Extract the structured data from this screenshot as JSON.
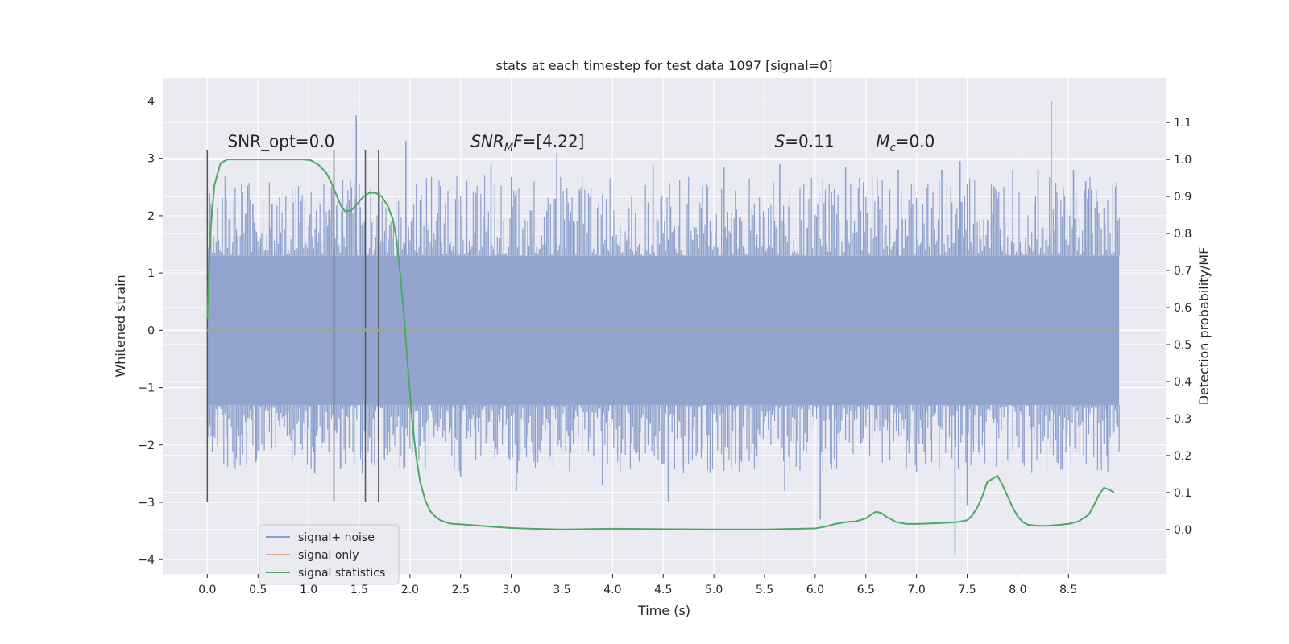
{
  "chart_data": {
    "type": "line",
    "title": "stats at each timestep for test data 1097 [signal=0]",
    "xlabel": "Time (s)",
    "ylabel": "Whitened strain",
    "y2label": "Detection probability/MF",
    "xlim": [
      -0.44,
      9.46
    ],
    "ylim": [
      -4.25,
      4.4
    ],
    "y2lim": [
      -0.12,
      1.22
    ],
    "grid": true,
    "x_ticks": [
      0.0,
      0.5,
      1.0,
      1.5,
      2.0,
      2.5,
      3.0,
      3.5,
      4.0,
      4.5,
      5.0,
      5.5,
      6.0,
      6.5,
      7.0,
      7.5,
      8.0,
      8.5
    ],
    "x_tick_labels": [
      "0.0",
      "0.5",
      "1.0",
      "1.5",
      "2.0",
      "2.5",
      "3.0",
      "3.5",
      "4.0",
      "4.5",
      "5.0",
      "5.5",
      "6.0",
      "6.5",
      "7.0",
      "7.5",
      "8.0",
      "8.5"
    ],
    "y_ticks": [
      4,
      3,
      2,
      1,
      0,
      -1,
      -2,
      -3,
      -4
    ],
    "y_tick_labels": [
      "4",
      "3",
      "2",
      "1",
      "0",
      "−1",
      "−2",
      "−3",
      "−4"
    ],
    "y2_ticks": [
      1.1,
      1.0,
      0.9,
      0.8,
      0.7,
      0.6,
      0.5,
      0.4,
      0.3,
      0.2,
      0.1,
      0.0
    ],
    "y2_tick_labels": [
      "1.1",
      "1.0",
      "0.9",
      "0.8",
      "0.7",
      "0.6",
      "0.5",
      "0.4",
      "0.3",
      "0.2",
      "0.1",
      "0.0"
    ],
    "noise_band": {
      "t_start": 0.0,
      "t_end": 9.0,
      "core_low": -1.3,
      "core_high": 1.3,
      "envelope_low": -2.5,
      "envelope_high": 2.7
    },
    "noise_spikes": [
      {
        "t": 0.45,
        "v": 2.2
      },
      {
        "t": 0.48,
        "v": -2.3
      },
      {
        "t": 0.64,
        "v": 2.2
      },
      {
        "t": 1.06,
        "v": -2.5
      },
      {
        "t": 1.2,
        "v": 2.1
      },
      {
        "t": 1.47,
        "v": 3.75
      },
      {
        "t": 1.53,
        "v": -2.5
      },
      {
        "t": 1.96,
        "v": 3.3
      },
      {
        "t": 2.15,
        "v": -2.4
      },
      {
        "t": 2.5,
        "v": -2.55
      },
      {
        "t": 2.8,
        "v": 2.9
      },
      {
        "t": 3.05,
        "v": -2.8
      },
      {
        "t": 3.45,
        "v": 3.1
      },
      {
        "t": 3.9,
        "v": -2.7
      },
      {
        "t": 4.4,
        "v": 2.9
      },
      {
        "t": 4.55,
        "v": -3.0
      },
      {
        "t": 5.1,
        "v": 2.85
      },
      {
        "t": 5.65,
        "v": 2.9
      },
      {
        "t": 5.7,
        "v": -2.8
      },
      {
        "t": 6.05,
        "v": -3.3
      },
      {
        "t": 6.3,
        "v": 2.85
      },
      {
        "t": 6.82,
        "v": 2.8
      },
      {
        "t": 7.25,
        "v": 2.8
      },
      {
        "t": 7.38,
        "v": -3.9
      },
      {
        "t": 7.43,
        "v": 2.95
      },
      {
        "t": 7.5,
        "v": -3.05
      },
      {
        "t": 7.95,
        "v": 2.8
      },
      {
        "t": 8.2,
        "v": 2.8
      },
      {
        "t": 8.33,
        "v": 4.0
      },
      {
        "t": 8.55,
        "v": 2.8
      },
      {
        "t": 8.67,
        "v": 2.6
      },
      {
        "t": 8.88,
        "v": -2.2
      }
    ],
    "vertical_markers": [
      0.0,
      1.25,
      1.56,
      1.69
    ],
    "vertical_marker_range": [
      -3.0,
      3.15
    ],
    "series": [
      {
        "name": "signal+ noise",
        "color": "#8da0cb",
        "kind": "noise"
      },
      {
        "name": "signal only",
        "color": "#e5a98f",
        "kind": "line",
        "x": [
          0.0,
          9.0
        ],
        "y": [
          0.0,
          0.0
        ]
      },
      {
        "name": "signal statistics",
        "color": "#4ca864",
        "kind": "line",
        "axis": "right",
        "x": [
          0.0,
          0.03,
          0.07,
          0.13,
          0.2,
          0.3,
          0.5,
          0.8,
          0.95,
          1.02,
          1.1,
          1.17,
          1.22,
          1.28,
          1.32,
          1.36,
          1.42,
          1.48,
          1.54,
          1.6,
          1.66,
          1.72,
          1.78,
          1.83,
          1.87,
          1.9,
          1.94,
          1.98,
          2.02,
          2.06,
          2.1,
          2.15,
          2.2,
          2.25,
          2.3,
          2.35,
          2.4,
          2.5,
          2.6,
          2.8,
          3.0,
          3.2,
          3.5,
          4.0,
          4.5,
          5.0,
          5.5,
          6.0,
          6.1,
          6.2,
          6.3,
          6.4,
          6.5,
          6.55,
          6.6,
          6.65,
          6.7,
          6.8,
          6.9,
          7.0,
          7.2,
          7.4,
          7.5,
          7.55,
          7.6,
          7.65,
          7.7,
          7.75,
          7.8,
          7.85,
          7.9,
          7.95,
          8.0,
          8.05,
          8.1,
          8.2,
          8.3,
          8.5,
          8.6,
          8.7,
          8.75,
          8.8,
          8.85,
          8.9,
          8.95
        ],
        "y": [
          0.57,
          0.8,
          0.93,
          0.99,
          1.0,
          1.0,
          1.0,
          1.0,
          1.0,
          0.998,
          0.985,
          0.965,
          0.94,
          0.9,
          0.875,
          0.86,
          0.862,
          0.88,
          0.9,
          0.91,
          0.91,
          0.9,
          0.875,
          0.84,
          0.78,
          0.7,
          0.58,
          0.44,
          0.3,
          0.2,
          0.13,
          0.08,
          0.05,
          0.035,
          0.025,
          0.02,
          0.016,
          0.014,
          0.012,
          0.008,
          0.004,
          0.002,
          0.0,
          0.002,
          0.001,
          0.0,
          0.0,
          0.003,
          0.008,
          0.015,
          0.02,
          0.022,
          0.03,
          0.04,
          0.048,
          0.045,
          0.035,
          0.02,
          0.015,
          0.015,
          0.017,
          0.02,
          0.025,
          0.038,
          0.06,
          0.09,
          0.13,
          0.137,
          0.145,
          0.12,
          0.09,
          0.06,
          0.035,
          0.02,
          0.013,
          0.01,
          0.01,
          0.015,
          0.022,
          0.04,
          0.065,
          0.093,
          0.113,
          0.108,
          0.1
        ]
      }
    ],
    "annotations": [
      {
        "id": "snr_opt",
        "text": "SNR_opt=0.0",
        "x": 0.2,
        "y": 3.2
      },
      {
        "id": "snr_mf",
        "prefix": "SNR",
        "sub": "M",
        "suffix": "F",
        "rest": "=[4.22]",
        "x": 2.6,
        "y": 3.2
      },
      {
        "id": "s_stat",
        "prefix": "S",
        "rest": "=0.11",
        "x": 5.6,
        "y": 3.2
      },
      {
        "id": "mc",
        "prefix": "M",
        "sub": "c",
        "rest": "=0.0",
        "x": 6.6,
        "y": 3.2
      }
    ],
    "legend": {
      "position": "lower-left",
      "entries": [
        {
          "label": "signal+ noise",
          "color": "#8da0cb"
        },
        {
          "label": "signal only",
          "color": "#e5a98f"
        },
        {
          "label": "signal statistics",
          "color": "#4ca864"
        }
      ]
    }
  }
}
